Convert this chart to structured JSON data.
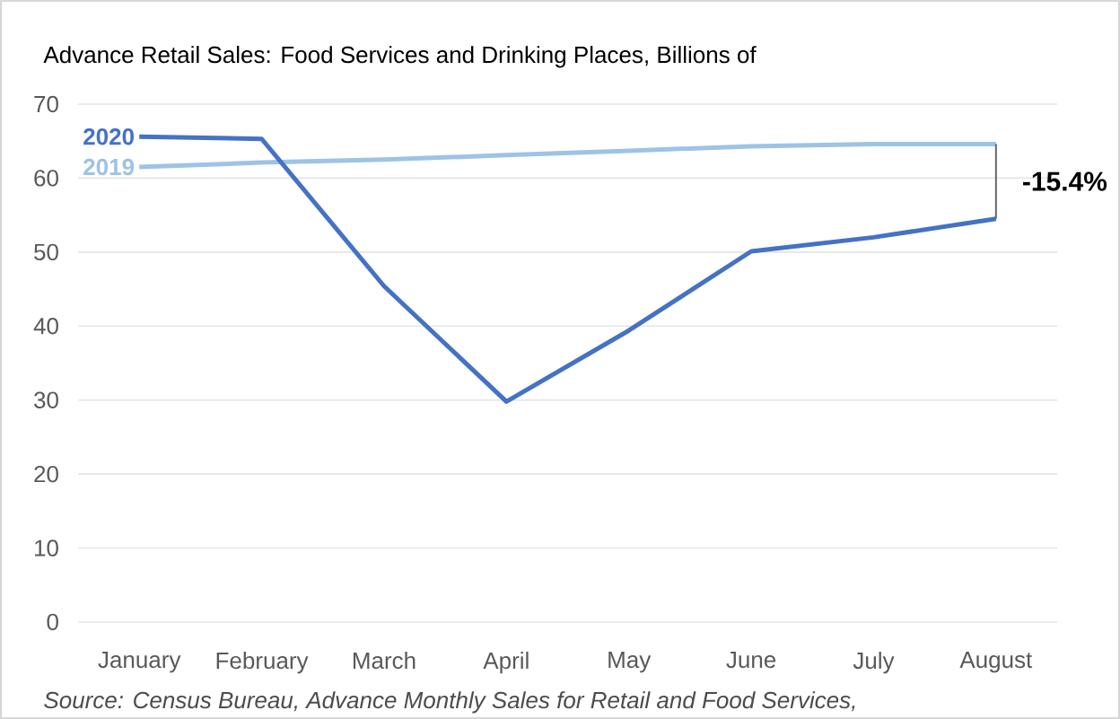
{
  "chart_data": {
    "type": "line",
    "title": "Advance Retail Sales: Food Services and Drinking Places, Billions of",
    "categories": [
      "January",
      "February",
      "March",
      "April",
      "May",
      "June",
      "July",
      "August"
    ],
    "series": [
      {
        "name": "2020",
        "color": "#4472c4",
        "values": [
          65.6,
          65.3,
          45.4,
          29.8,
          39.4,
          50.1,
          52.0,
          54.5
        ]
      },
      {
        "name": "2019",
        "color": "#9dc3e6",
        "values": [
          61.5,
          62.1,
          62.5,
          63.1,
          63.7,
          64.3,
          64.6,
          64.6
        ]
      }
    ],
    "ylim": [
      0,
      70
    ],
    "yticks": [
      0,
      10,
      20,
      30,
      40,
      50,
      60,
      70
    ],
    "grid": "y",
    "annotations": [
      "-15.4%",
      "Source: Census Bureau, Advance Monthly Sales for Retail and Food Services,"
    ]
  }
}
